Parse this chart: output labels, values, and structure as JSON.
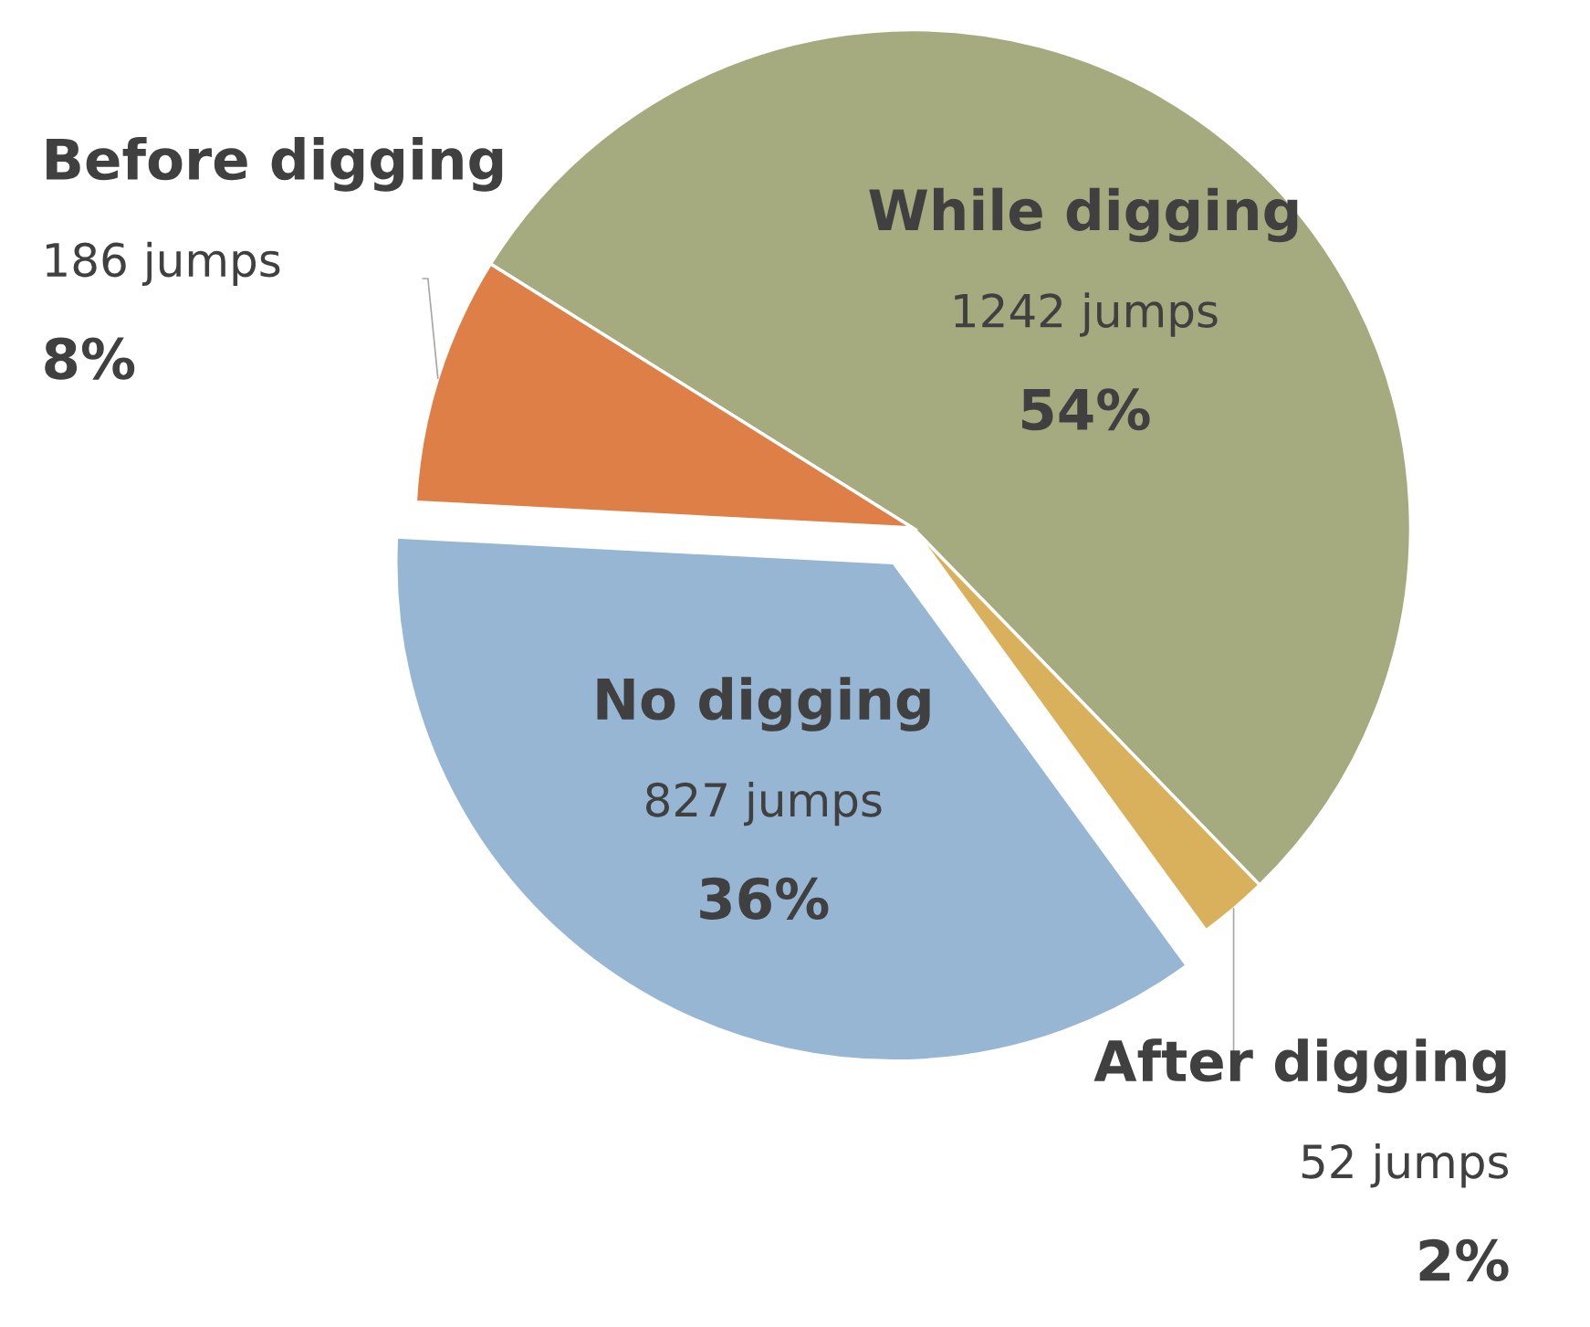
{
  "chart_data": {
    "type": "pie",
    "categories": [
      "While digging",
      "After digging",
      "No digging",
      "Before digging"
    ],
    "values": [
      1242,
      52,
      827,
      186
    ],
    "value_labels": [
      "1242 jumps\n54%",
      "52 jumps\n2%",
      "827 jumps\n36%",
      "186 jumps\n8%"
    ],
    "colors": [
      "#a5aa7f",
      "#d9b15c",
      "#97b6d3",
      "#de7f48"
    ],
    "legend": false
  }
}
